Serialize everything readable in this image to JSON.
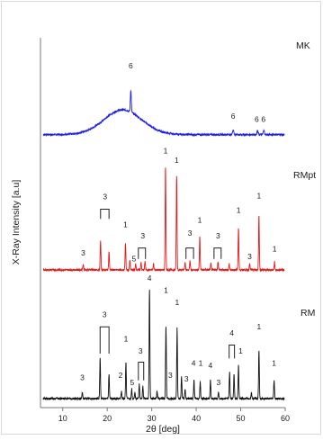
{
  "chart_data": {
    "type": "line",
    "xlabel": "2θ [deg]",
    "ylabel": "X-Ray Intensity [a.u]",
    "xlim": [
      5,
      60
    ],
    "xticks": [
      10,
      20,
      30,
      40,
      50,
      60
    ],
    "yticks": [],
    "series": [
      {
        "name": "MK",
        "color": "#1f1fe0",
        "baseline": 0.04,
        "noise": 0.01,
        "hump": {
          "center": 23.5,
          "width": 6.0,
          "height": 0.25
        },
        "peaks": [
          [
            25.3,
            0.22,
            0.15
          ],
          [
            48.3,
            0.05,
            0.2
          ],
          [
            53.8,
            0.04,
            0.2
          ],
          [
            55.2,
            0.04,
            0.2
          ]
        ],
        "annotations": [
          {
            "text": "6",
            "x": 25.3,
            "y": 0.71
          },
          {
            "text": "6",
            "x": 48.3,
            "y": 0.2
          },
          {
            "text": "6",
            "x": 53.6,
            "y": 0.17
          },
          {
            "text": "6",
            "x": 55.1,
            "y": 0.17
          }
        ],
        "brackets": []
      },
      {
        "name": "RMpt",
        "color": "#e41a1a",
        "baseline": 0.03,
        "noise": 0.008,
        "hump": null,
        "peaks": [
          [
            14.6,
            0.04,
            0.15
          ],
          [
            18.5,
            0.24,
            0.12
          ],
          [
            20.4,
            0.15,
            0.12
          ],
          [
            24.1,
            0.22,
            0.12
          ],
          [
            25.1,
            0.08,
            0.12
          ],
          [
            26.4,
            0.05,
            0.12
          ],
          [
            27.6,
            0.06,
            0.12
          ],
          [
            28.5,
            0.07,
            0.12
          ],
          [
            30.4,
            0.05,
            0.12
          ],
          [
            33.1,
            0.85,
            0.12
          ],
          [
            35.6,
            0.78,
            0.12
          ],
          [
            37.5,
            0.06,
            0.12
          ],
          [
            38.6,
            0.08,
            0.12
          ],
          [
            40.8,
            0.28,
            0.12
          ],
          [
            43.3,
            0.05,
            0.12
          ],
          [
            44.9,
            0.07,
            0.12
          ],
          [
            47.4,
            0.05,
            0.12
          ],
          [
            49.5,
            0.35,
            0.12
          ],
          [
            52.0,
            0.05,
            0.12
          ],
          [
            54.1,
            0.45,
            0.12
          ],
          [
            57.6,
            0.06,
            0.12
          ]
        ],
        "annotations": [
          {
            "text": "3",
            "x": 14.6,
            "y": 0.15
          },
          {
            "text": "3",
            "x": 19.5,
            "y": 0.61
          },
          {
            "text": "1",
            "x": 24.1,
            "y": 0.38
          },
          {
            "text": "5",
            "x": 26.0,
            "y": 0.1
          },
          {
            "text": "3",
            "x": 28.0,
            "y": 0.29
          },
          {
            "text": "1",
            "x": 33.1,
            "y": 0.99
          },
          {
            "text": "1",
            "x": 35.6,
            "y": 0.91
          },
          {
            "text": "3",
            "x": 38.6,
            "y": 0.31
          },
          {
            "text": "1",
            "x": 40.8,
            "y": 0.42
          },
          {
            "text": "3",
            "x": 44.9,
            "y": 0.29
          },
          {
            "text": "1",
            "x": 49.5,
            "y": 0.5
          },
          {
            "text": "3",
            "x": 52.0,
            "y": 0.12
          },
          {
            "text": "1",
            "x": 54.1,
            "y": 0.62
          },
          {
            "text": "1",
            "x": 57.6,
            "y": 0.18
          }
        ],
        "brackets": [
          {
            "x1": 18.5,
            "x2": 20.4,
            "y": 0.53,
            "y_end": 0.45
          },
          {
            "x1": 27.0,
            "x2": 28.6,
            "y": 0.21,
            "y_end": 0.12
          },
          {
            "x1": 37.7,
            "x2": 39.4,
            "y": 0.21,
            "y_end": 0.12
          },
          {
            "x1": 44.0,
            "x2": 45.6,
            "y": 0.21,
            "y_end": 0.12
          }
        ]
      },
      {
        "name": "RM",
        "color": "#111111",
        "baseline": 0.03,
        "noise": 0.008,
        "hump": null,
        "peaks": [
          [
            14.4,
            0.05,
            0.12
          ],
          [
            18.4,
            0.33,
            0.12
          ],
          [
            20.4,
            0.2,
            0.12
          ],
          [
            23.2,
            0.06,
            0.12
          ],
          [
            24.2,
            0.3,
            0.12
          ],
          [
            25.5,
            0.08,
            0.12
          ],
          [
            26.2,
            0.05,
            0.12
          ],
          [
            27.2,
            0.12,
            0.12
          ],
          [
            28.0,
            0.1,
            0.12
          ],
          [
            29.5,
            0.9,
            0.12
          ],
          [
            31.2,
            0.06,
            0.12
          ],
          [
            33.2,
            0.6,
            0.12
          ],
          [
            35.7,
            0.58,
            0.12
          ],
          [
            36.7,
            0.18,
            0.12
          ],
          [
            37.5,
            0.08,
            0.12
          ],
          [
            39.5,
            0.15,
            0.12
          ],
          [
            40.9,
            0.14,
            0.12
          ],
          [
            43.2,
            0.15,
            0.12
          ],
          [
            45.0,
            0.05,
            0.12
          ],
          [
            47.5,
            0.22,
            0.12
          ],
          [
            48.5,
            0.2,
            0.12
          ],
          [
            49.5,
            0.28,
            0.12
          ],
          [
            52.4,
            0.05,
            0.12
          ],
          [
            54.1,
            0.4,
            0.12
          ],
          [
            57.5,
            0.15,
            0.12
          ]
        ],
        "annotations": [
          {
            "text": "3",
            "x": 14.4,
            "y": 0.18
          },
          {
            "text": "3",
            "x": 19.4,
            "y": 0.7
          },
          {
            "text": "2",
            "x": 23.0,
            "y": 0.2
          },
          {
            "text": "1",
            "x": 24.2,
            "y": 0.5
          },
          {
            "text": "5",
            "x": 25.6,
            "y": 0.14
          },
          {
            "text": "3",
            "x": 27.5,
            "y": 0.4
          },
          {
            "text": "4",
            "x": 29.5,
            "y": 1.0
          },
          {
            "text": "1",
            "x": 33.2,
            "y": 0.9
          },
          {
            "text": "3",
            "x": 34.2,
            "y": 0.2
          },
          {
            "text": "1",
            "x": 35.7,
            "y": 0.8
          },
          {
            "text": "3",
            "x": 37.8,
            "y": 0.17
          },
          {
            "text": "4",
            "x": 39.4,
            "y": 0.3
          },
          {
            "text": "1",
            "x": 41.0,
            "y": 0.3
          },
          {
            "text": "4",
            "x": 43.2,
            "y": 0.28
          },
          {
            "text": "3",
            "x": 45.0,
            "y": 0.14
          },
          {
            "text": "4",
            "x": 48.0,
            "y": 0.55
          },
          {
            "text": "1",
            "x": 50.0,
            "y": 0.4
          },
          {
            "text": "1",
            "x": 54.1,
            "y": 0.6
          },
          {
            "text": "1",
            "x": 57.5,
            "y": 0.3
          }
        ],
        "brackets": [
          {
            "x1": 18.4,
            "x2": 20.4,
            "y": 0.62,
            "y_end": 0.4
          },
          {
            "x1": 27.0,
            "x2": 28.2,
            "y": 0.33,
            "y_end": 0.18
          },
          {
            "x1": 47.4,
            "x2": 48.6,
            "y": 0.47,
            "y_end": 0.36
          }
        ]
      }
    ]
  }
}
